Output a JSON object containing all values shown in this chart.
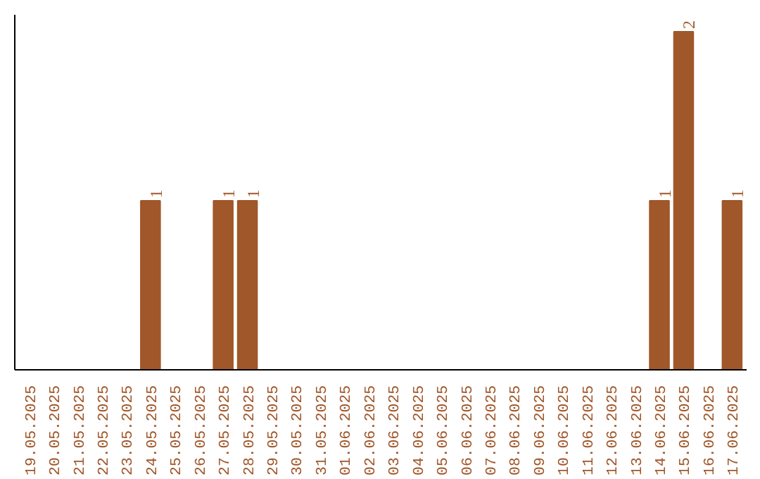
{
  "chart_data": {
    "type": "bar",
    "categories": [
      "19.05.2025",
      "20.05.2025",
      "21.05.2025",
      "22.05.2025",
      "23.05.2025",
      "24.05.2025",
      "25.05.2025",
      "26.05.2025",
      "27.05.2025",
      "28.05.2025",
      "29.05.2025",
      "30.05.2025",
      "31.05.2025",
      "01.06.2025",
      "02.06.2025",
      "03.06.2025",
      "04.06.2025",
      "05.06.2025",
      "06.06.2025",
      "07.06.2025",
      "08.06.2025",
      "09.06.2025",
      "10.06.2025",
      "11.06.2025",
      "12.06.2025",
      "13.06.2025",
      "14.06.2025",
      "15.06.2025",
      "16.06.2025",
      "17.06.2025"
    ],
    "values": [
      0,
      0,
      0,
      0,
      0,
      1,
      0,
      0,
      1,
      1,
      0,
      0,
      0,
      0,
      0,
      0,
      0,
      0,
      0,
      0,
      0,
      0,
      0,
      0,
      0,
      0,
      1,
      2,
      0,
      1
    ],
    "value_labels": [
      null,
      null,
      null,
      null,
      null,
      "1",
      null,
      null,
      "1",
      "1",
      null,
      null,
      null,
      null,
      null,
      null,
      null,
      null,
      null,
      null,
      null,
      null,
      null,
      null,
      null,
      null,
      "1",
      "2",
      null,
      "1"
    ],
    "color": "#a0572a",
    "grid": false
  }
}
